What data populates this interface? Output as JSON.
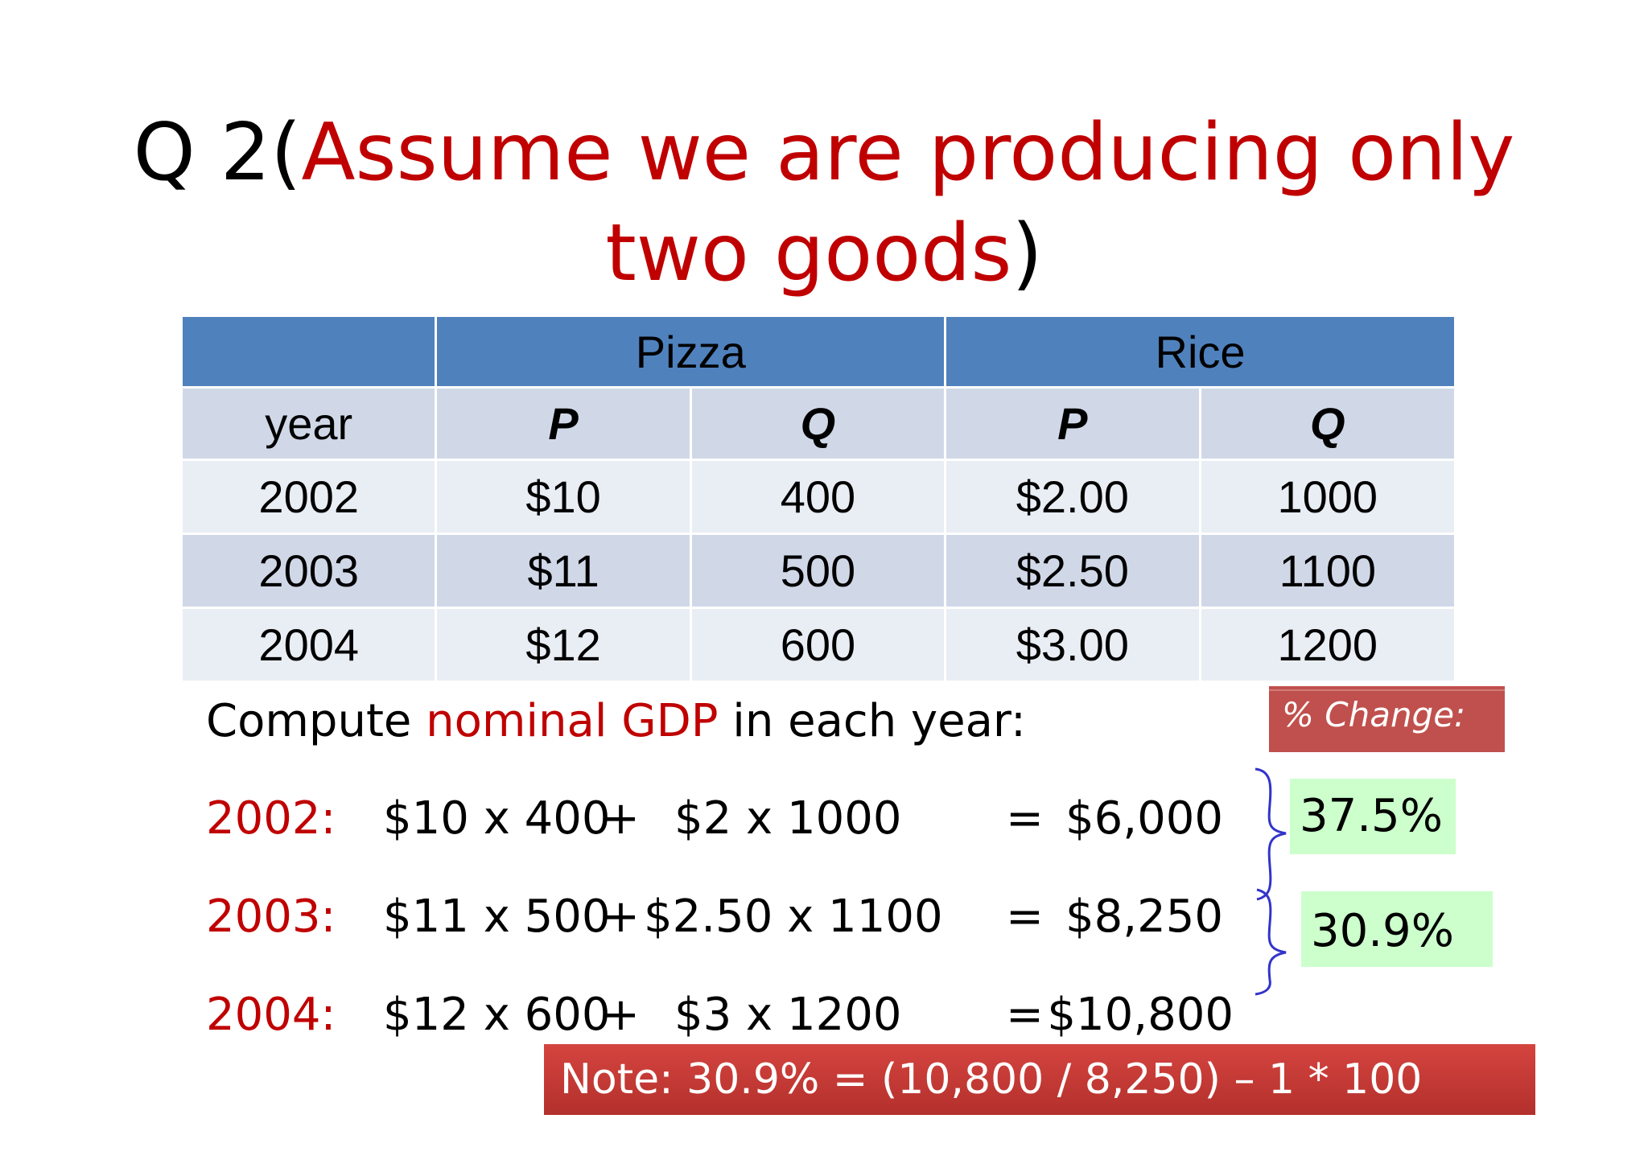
{
  "title": {
    "prefix": "Q 2",
    "open_paren": "(",
    "red_line1": "Assume we are producing only",
    "red_line2": "two goods",
    "close_paren": ")"
  },
  "table": {
    "group_headers": [
      "",
      "Pizza",
      "Rice"
    ],
    "sub_headers": [
      "year",
      "P",
      "Q",
      "P",
      "Q"
    ],
    "rows": [
      [
        "2002",
        "$10",
        "400",
        "$2.00",
        "1000"
      ],
      [
        "2003",
        "$11",
        "500",
        "$2.50",
        "1100"
      ],
      [
        "2004",
        "$12",
        "600",
        "$3.00",
        "1200"
      ]
    ]
  },
  "compute": {
    "prefix": "Compute ",
    "highlight": "nominal GDP",
    "suffix": " in each year:"
  },
  "percent_change_label": "% Change:",
  "equations": [
    {
      "year": "2002:",
      "term1": "$10 x 400",
      "plus": "+",
      "term2": "$2 x 1000",
      "eq": "=",
      "result": "$6,000"
    },
    {
      "year": "2003:",
      "term1": "$11 x 500",
      "plus": "+",
      "term2": "$2.50 x 1100",
      "eq": "=",
      "result": "$8,250"
    },
    {
      "year": "2004:",
      "term1": "$12 x 600",
      "plus": "+",
      "term2": "$3 x 1200",
      "eq": "=",
      "result": "$10,800"
    }
  ],
  "changes": [
    "37.5%",
    "30.9%"
  ],
  "note": "Note: 30.9% = (10,800 / 8,250) – 1 * 100",
  "colors": {
    "accent_red": "#c00000",
    "header_blue": "#4f81bd",
    "green_box": "#ccffcc",
    "brace_blue": "#3333cc"
  }
}
